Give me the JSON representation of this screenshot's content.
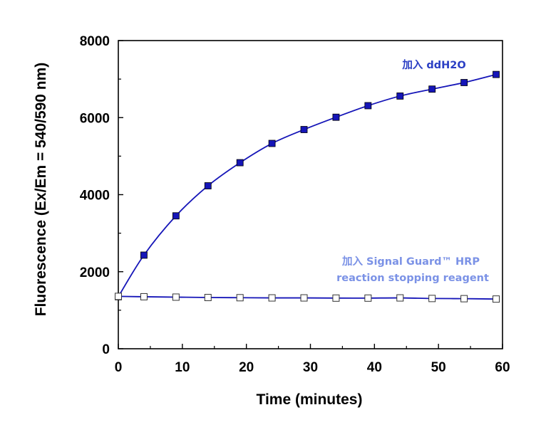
{
  "chart_data": {
    "type": "line",
    "xlabel": "Time (minutes)",
    "ylabel": "Fluorescence (Ex/Em = 540/590 nm)",
    "xlim": [
      0,
      60
    ],
    "ylim": [
      0,
      8000
    ],
    "xticks": [
      0,
      10,
      20,
      30,
      40,
      50,
      60
    ],
    "yticks": [
      0,
      2000,
      4000,
      6000,
      8000
    ],
    "grid": false,
    "series": [
      {
        "name": "加入 ddH2O",
        "color": "#1515b8",
        "marker": "filled-square",
        "x": [
          0,
          4,
          9,
          14,
          19,
          24,
          29,
          34,
          39,
          44,
          49,
          54,
          59
        ],
        "y": [
          1350,
          2430,
          3450,
          4230,
          4830,
          5330,
          5690,
          6010,
          6310,
          6560,
          6740,
          6910,
          7120
        ]
      },
      {
        "name": "加入 Signal Guard™ HRP reaction stopping reagent",
        "color": "#1515b8",
        "marker": "open-square",
        "x": [
          0,
          4,
          9,
          14,
          19,
          24,
          29,
          34,
          39,
          44,
          49,
          54,
          59
        ],
        "y": [
          1360,
          1350,
          1340,
          1330,
          1325,
          1320,
          1320,
          1315,
          1315,
          1320,
          1305,
          1300,
          1290
        ]
      }
    ],
    "annotations": [
      {
        "lines": [
          "加入 ddH2O"
        ],
        "color": "#2b3fc4"
      },
      {
        "lines": [
          "加入 Signal Guard™ HRP",
          "reaction stopping reagent"
        ],
        "color": "#7b92e6"
      }
    ]
  }
}
